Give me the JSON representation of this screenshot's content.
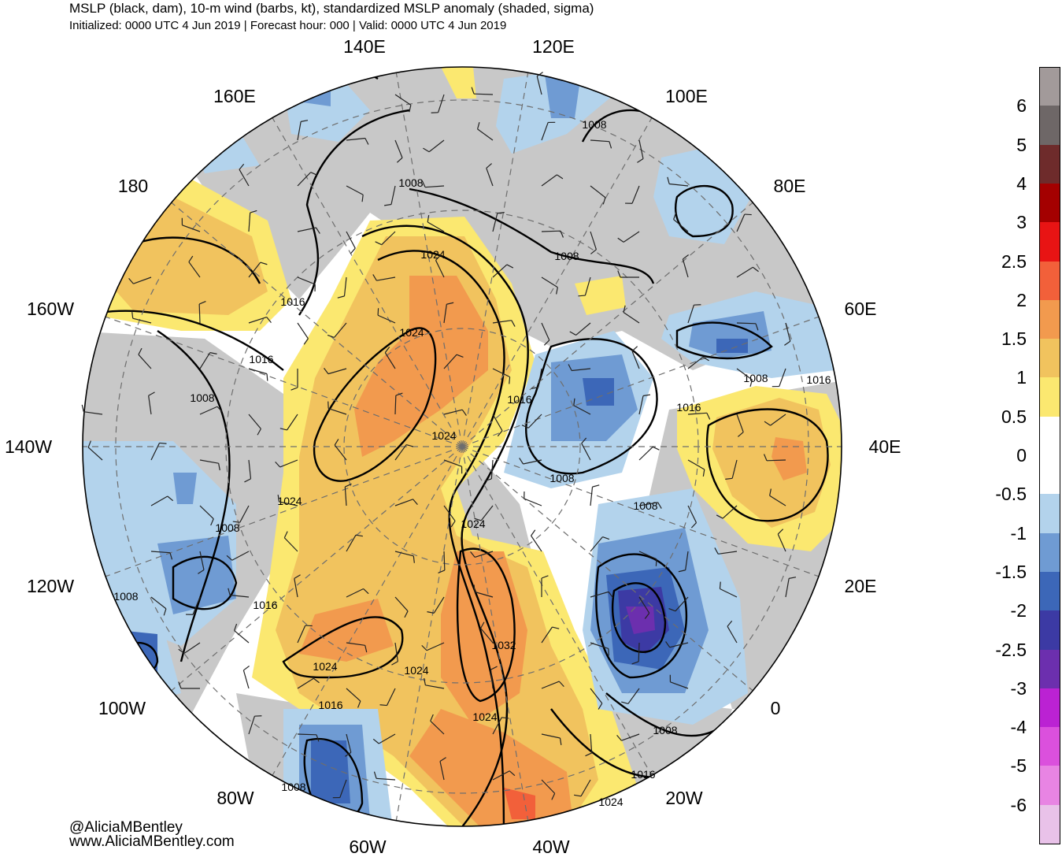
{
  "header": {
    "title": "MSLP (black, dam), 10-m wind (barbs, kt), standardized MSLP anomaly (shaded, sigma)",
    "subtitle": "Initialized: 0000 UTC 4 Jun 2019 | Forecast hour: 000 | Valid: 0000 UTC 4 Jun 2019"
  },
  "longitude_labels": [
    {
      "id": "140e",
      "text": "140E"
    },
    {
      "id": "120e",
      "text": "120E"
    },
    {
      "id": "160e",
      "text": "160E"
    },
    {
      "id": "100e",
      "text": "100E"
    },
    {
      "id": "180",
      "text": "180"
    },
    {
      "id": "80e",
      "text": "80E"
    },
    {
      "id": "160w",
      "text": "160W"
    },
    {
      "id": "60e",
      "text": "60E"
    },
    {
      "id": "140w",
      "text": "140W"
    },
    {
      "id": "40e",
      "text": "40E"
    },
    {
      "id": "120w",
      "text": "120W"
    },
    {
      "id": "20e",
      "text": "20E"
    },
    {
      "id": "100w",
      "text": "100W"
    },
    {
      "id": "0",
      "text": "0"
    },
    {
      "id": "80w",
      "text": "80W"
    },
    {
      "id": "20w",
      "text": "20W"
    },
    {
      "id": "60w",
      "text": "60W"
    },
    {
      "id": "40w",
      "text": "40W"
    }
  ],
  "isobar_labels": [
    "1008",
    "1008",
    "1008",
    "1016",
    "1024",
    "1016",
    "1008",
    "1024",
    "1016",
    "1008",
    "1016",
    "1016",
    "1024",
    "1008",
    "1008",
    "1024",
    "1008",
    "1024",
    "1016",
    "1008",
    "1032",
    "1024",
    "1024",
    "1024",
    "1016",
    "1008",
    "1008",
    "1016",
    "1024"
  ],
  "colorbar": {
    "unit": "sigma",
    "labels": [
      "6",
      "5",
      "4",
      "3",
      "2.5",
      "2",
      "1.5",
      "1",
      "0.5",
      "0",
      "-0.5",
      "-1",
      "-1.5",
      "-2",
      "-2.5",
      "-3",
      "-4",
      "-5",
      "-6"
    ],
    "colors": [
      "#a29a9a",
      "#6e6767",
      "#6e2b2b",
      "#a40000",
      "#e81414",
      "#f2603a",
      "#f29a4e",
      "#f1c35e",
      "#fbe870",
      "#ffffff",
      "#ffffff",
      "#b3d3ec",
      "#6f9bd3",
      "#3c67b8",
      "#3c3aa4",
      "#6c2fae",
      "#bb22d3",
      "#db50dd",
      "#e884e3",
      "#e9c2e9"
    ]
  },
  "anomaly_colors": {
    "land": "#c8c8c8",
    "pos_05": "#fbe870",
    "pos_10": "#f1c35e",
    "pos_15": "#f29a4e",
    "pos_20": "#f2603a",
    "neg_05": "#b3d3ec",
    "neg_10": "#6f9bd3",
    "neg_15": "#3c67b8",
    "neg_20": "#3c3aa4",
    "neg_25": "#6c2fae"
  },
  "credits": {
    "handle": "@AliciaMBentley",
    "website": "www.AliciaMBentley.com"
  }
}
